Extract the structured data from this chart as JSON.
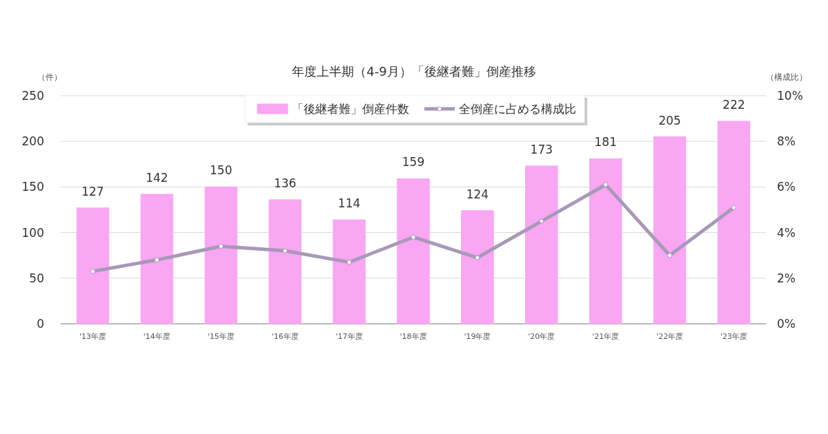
{
  "chart_data": {
    "type": "bar",
    "title": "年度上半期（4-9月）「後継者難」倒産推移",
    "ylabel": "（件）",
    "y2label": "（構成比）",
    "categories": [
      "'13年度",
      "'14年度",
      "'15年度",
      "'16年度",
      "'17年度",
      "'18年度",
      "'19年度",
      "'20年度",
      "'21年度",
      "'22年度",
      "'23年度"
    ],
    "series": [
      {
        "name": "「後継者難」倒産件数",
        "color": "#f9a6f3",
        "values": [
          127,
          142,
          150,
          136,
          114,
          159,
          124,
          173,
          181,
          205,
          222
        ],
        "value_labels": [
          "127",
          "142",
          "150",
          "136",
          "114",
          "159",
          "124",
          "173",
          "181",
          "205",
          "222"
        ]
      },
      {
        "name": "全倒産に占める構成比",
        "type": "line",
        "axis": "y2",
        "color": "#a898b8",
        "marker": "circle",
        "values": [
          2.3,
          2.8,
          3.4,
          3.2,
          2.7,
          3.8,
          2.9,
          4.5,
          6.1,
          3.0,
          5.1
        ]
      }
    ],
    "ylim": [
      0,
      250
    ],
    "yticks": [
      0,
      50,
      100,
      150,
      200,
      250
    ],
    "y2lim": [
      0,
      10
    ],
    "y2ticks": [
      {
        "value": 0,
        "label": "0%"
      },
      {
        "value": 2,
        "label": "2%"
      },
      {
        "value": 4,
        "label": "4%"
      },
      {
        "value": 6,
        "label": "6%"
      },
      {
        "value": 8,
        "label": "8%"
      },
      {
        "value": 10,
        "label": "10%"
      }
    ],
    "grid": "y",
    "legend": "top"
  }
}
